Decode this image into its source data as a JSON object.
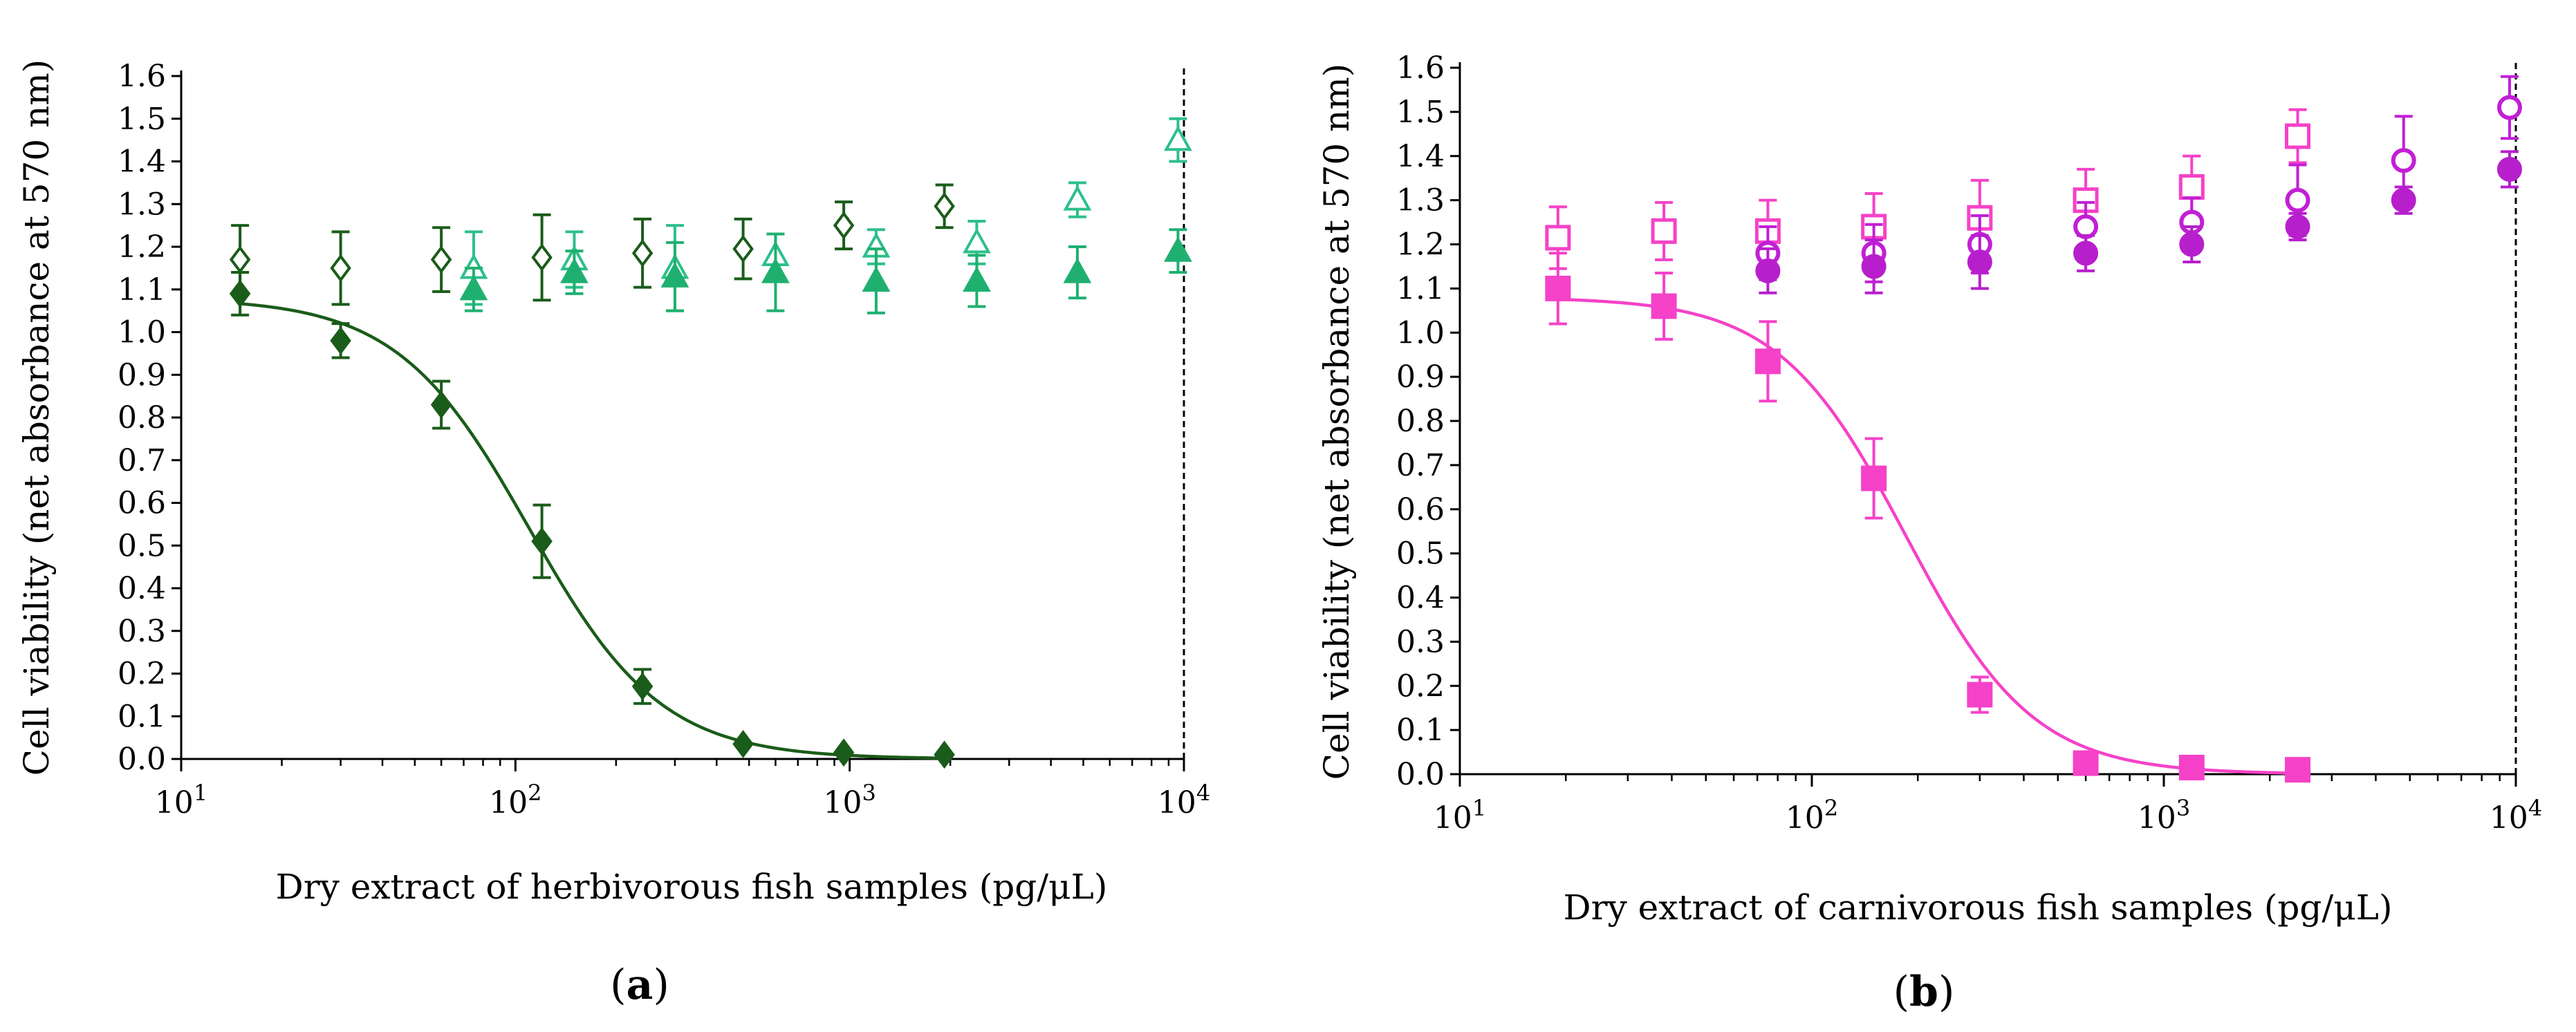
{
  "chart_data": [
    {
      "type": "scatter",
      "panel_label": "a",
      "xlabel": "Dry extract of herbivorous  fish samples (pg/μL)",
      "ylabel": "Cell viability (net absorbance at 570 nm)",
      "xscale": "log",
      "xlim": [
        10,
        10000
      ],
      "ylim": [
        0,
        1.6
      ],
      "ytick_labels": [
        "0.0",
        "0.1",
        "0.2",
        "0.3",
        "0.4",
        "0.5",
        "0.6",
        "0.7",
        "0.8",
        "0.9",
        "1.0",
        "1.1",
        "1.2",
        "1.3",
        "1.4",
        "1.5",
        "1.6"
      ],
      "xtick_labels": [
        {
          "base": "10",
          "exp": "1",
          "value": 10
        },
        {
          "base": "10",
          "exp": "2",
          "value": 100
        },
        {
          "base": "10",
          "exp": "3",
          "value": 1000
        },
        {
          "base": "10",
          "exp": "4",
          "value": 10000
        }
      ],
      "reference_line_x": 10000,
      "series": [
        {
          "name": "herbivorous dark filled diamond",
          "marker": "diamond",
          "filled": true,
          "color": "#1a5c1a",
          "x": [
            15,
            30,
            60,
            120,
            240,
            480,
            960,
            1920
          ],
          "y": [
            1.09,
            0.98,
            0.83,
            0.51,
            0.17,
            0.035,
            0.015,
            0.01
          ],
          "err": [
            0.05,
            0.04,
            0.055,
            0.085,
            0.04,
            0,
            0,
            0
          ]
        },
        {
          "name": "herbivorous dark open diamond",
          "marker": "diamond",
          "filled": false,
          "color": "#1a5c1a",
          "x": [
            15,
            30,
            60,
            120,
            240,
            480,
            960,
            1920
          ],
          "y": [
            1.17,
            1.15,
            1.17,
            1.175,
            1.185,
            1.195,
            1.25,
            1.295
          ],
          "err": [
            0.08,
            0.085,
            0.075,
            0.1,
            0.08,
            0.07,
            0.055,
            0.05
          ]
        },
        {
          "name": "herbivorous green open triangle",
          "marker": "triangle",
          "filled": false,
          "color": "#2dbf8a",
          "x": [
            75,
            150,
            300,
            600,
            1200,
            2400,
            4800,
            9600
          ],
          "y": [
            1.15,
            1.17,
            1.15,
            1.18,
            1.2,
            1.21,
            1.31,
            1.45
          ],
          "err": [
            0.085,
            0.065,
            0.1,
            0.05,
            0.04,
            0.05,
            0.04,
            0.05
          ]
        },
        {
          "name": "herbivorous green filled triangle",
          "marker": "triangle",
          "filled": true,
          "color": "#1fb070",
          "x": [
            75,
            150,
            300,
            600,
            1200,
            2400,
            4800,
            9600
          ],
          "y": [
            1.1,
            1.14,
            1.13,
            1.14,
            1.12,
            1.12,
            1.14,
            1.19
          ],
          "err": [
            0.05,
            0.05,
            0.08,
            0.09,
            0.075,
            0.06,
            0.06,
            0.05
          ]
        }
      ],
      "fit_curve": {
        "color": "#1a5c1a",
        "top": 1.08,
        "bottom": 0.0,
        "ec50": 110,
        "hill": 2.2
      }
    },
    {
      "type": "scatter",
      "panel_label": "b",
      "xlabel": "Dry extract of  carnivorous  fish samples (pg/μL)",
      "ylabel": "Cell viability (net absorbance at 570 nm)",
      "xscale": "log",
      "xlim": [
        10,
        10000
      ],
      "ylim": [
        0,
        1.6
      ],
      "ytick_labels": [
        "0.0",
        "0.1",
        "0.2",
        "0.3",
        "0.4",
        "0.5",
        "0.6",
        "0.7",
        "0.8",
        "0.9",
        "1.0",
        "1.1",
        "1.2",
        "1.3",
        "1.4",
        "1.5",
        "1.6"
      ],
      "xtick_labels": [
        {
          "base": "10",
          "exp": "1",
          "value": 10
        },
        {
          "base": "10",
          "exp": "2",
          "value": 100
        },
        {
          "base": "10",
          "exp": "3",
          "value": 1000
        },
        {
          "base": "10",
          "exp": "4",
          "value": 10000
        }
      ],
      "reference_line_x": 10000,
      "series": [
        {
          "name": "carnivorous pink filled square",
          "marker": "square",
          "filled": true,
          "color": "#f542c8",
          "x": [
            19,
            38,
            75,
            150,
            300,
            600,
            1200,
            2400
          ],
          "y": [
            1.1,
            1.06,
            0.935,
            0.67,
            0.18,
            0.025,
            0.015,
            0.01
          ],
          "err": [
            0.08,
            0.075,
            0.09,
            0.09,
            0.04,
            0,
            0,
            0
          ]
        },
        {
          "name": "carnivorous pink open square",
          "marker": "square",
          "filled": false,
          "color": "#f542c8",
          "x": [
            19,
            38,
            75,
            150,
            300,
            600,
            1200,
            2400
          ],
          "y": [
            1.215,
            1.23,
            1.23,
            1.24,
            1.26,
            1.3,
            1.33,
            1.445
          ],
          "err": [
            0.07,
            0.065,
            0.07,
            0.075,
            0.085,
            0.07,
            0.07,
            0.06
          ]
        },
        {
          "name": "carnivorous purple open circle",
          "marker": "circle",
          "filled": false,
          "color": "#c21fd6",
          "x": [
            75,
            150,
            300,
            600,
            1200,
            2400,
            4800,
            9600
          ],
          "y": [
            1.18,
            1.18,
            1.2,
            1.24,
            1.25,
            1.3,
            1.39,
            1.51
          ],
          "err": [
            0.06,
            0.065,
            0.065,
            0.055,
            0.055,
            0.08,
            0.1,
            0.07
          ]
        },
        {
          "name": "carnivorous purple filled circle",
          "marker": "circle",
          "filled": true,
          "color": "#b71fcc",
          "x": [
            75,
            150,
            300,
            600,
            1200,
            2400,
            4800,
            9600
          ],
          "y": [
            1.14,
            1.15,
            1.16,
            1.18,
            1.2,
            1.24,
            1.3,
            1.37
          ],
          "err": [
            0.05,
            0.06,
            0.06,
            0.04,
            0.04,
            0.03,
            0.03,
            0.04
          ]
        }
      ],
      "fit_curve": {
        "color": "#f542c8",
        "top": 1.08,
        "bottom": 0.0,
        "ec50": 185,
        "hill": 2.4
      }
    }
  ]
}
